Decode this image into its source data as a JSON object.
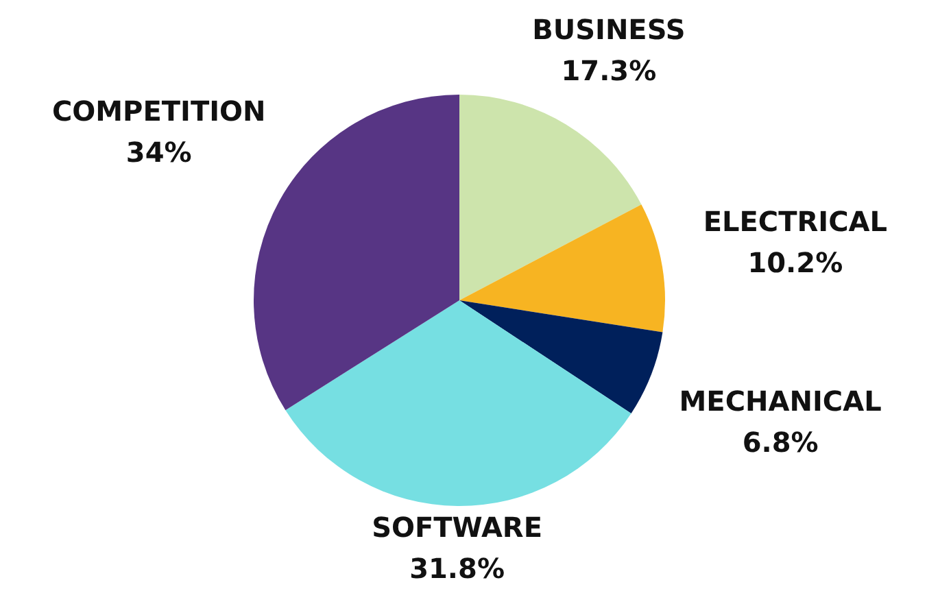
{
  "chart_data": {
    "type": "pie",
    "categories": [
      "BUSINESS",
      "ELECTRICAL",
      "MECHANICAL",
      "SOFTWARE",
      "COMPETITION"
    ],
    "values": [
      17.3,
      10.2,
      6.8,
      31.8,
      34
    ],
    "value_labels": [
      "17.3%",
      "10.2%",
      "6.8%",
      "31.8%",
      "34%"
    ],
    "colors": [
      "#cde4ac",
      "#f7b422",
      "#00205b",
      "#76dfe2",
      "#573584"
    ]
  }
}
